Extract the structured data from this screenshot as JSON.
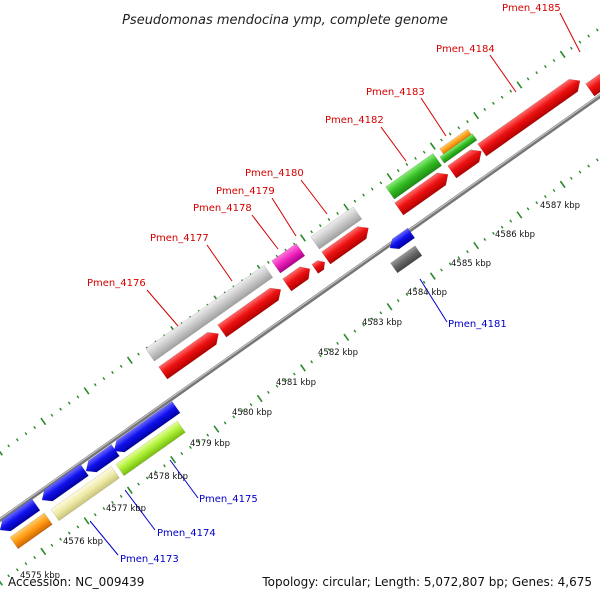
{
  "title": "Pseudomonas mendocina ymp, complete genome",
  "footer": {
    "accession": "Accession: NC_009439",
    "stats": "Topology: circular; Length: 5,072,807 bp; Genes: 4,675"
  },
  "colors": {
    "forward_gene": "#ee1111",
    "reverse_gene": "#1111ee",
    "label_forward": "#d40000",
    "label_reverse": "#0000c8",
    "backbone": "#888888",
    "ruler": "#228822"
  },
  "kbp_ticks": [
    "4575 kbp",
    "4576 kbp",
    "4577 kbp",
    "4578 kbp",
    "4579 kbp",
    "4580 kbp",
    "4581 kbp",
    "4582 kbp",
    "4583 kbp",
    "4584 kbp",
    "4585 kbp",
    "4586 kbp",
    "4587 kbp"
  ],
  "gene_labels_forward": [
    "Pmen_4176",
    "Pmen_4177",
    "Pmen_4178",
    "Pmen_4179",
    "Pmen_4180",
    "Pmen_4182",
    "Pmen_4183",
    "Pmen_4184",
    "Pmen_4185"
  ],
  "gene_labels_reverse": [
    "Pmen_4173",
    "Pmen_4174",
    "Pmen_4175",
    "Pmen_4181"
  ]
}
